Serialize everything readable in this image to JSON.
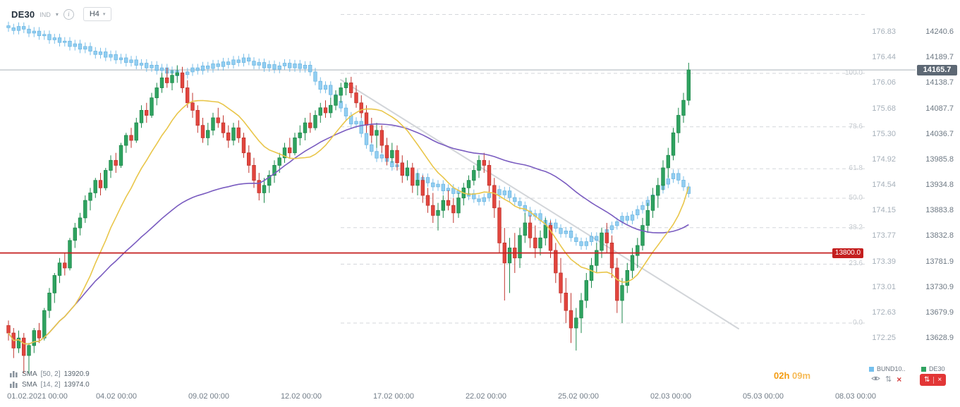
{
  "header": {
    "symbol": "DE30",
    "instrument_type": "IND",
    "timeframe": "H4"
  },
  "current_price": "14165.7",
  "level_line": "13800.0",
  "axis": {
    "bund_prices": [
      "176.83",
      "176.44",
      "176.06",
      "175.68",
      "175.30",
      "174.92",
      "174.54",
      "174.15",
      "173.77",
      "173.39",
      "173.01",
      "172.63",
      "172.25"
    ],
    "de30_prices": [
      "14240.6",
      "14189.7",
      "14138.7",
      "14087.7",
      "14036.7",
      "13985.8",
      "13934.8",
      "13883.8",
      "13832.8",
      "13781.9",
      "13730.9",
      "13679.9",
      "13628.9"
    ],
    "times": [
      "01.02.2021 00:00",
      "04.02 00:00",
      "09.02 00:00",
      "12.02 00:00",
      "17.02 00:00",
      "22.02 00:00",
      "25.02 00:00",
      "02.03 00:00",
      "05.03 00:00",
      "08.03 00:00"
    ]
  },
  "fib_levels": [
    {
      "pct": 123.6,
      "label": ""
    },
    {
      "pct": 100.0,
      "label": "100.0"
    },
    {
      "pct": 78.6,
      "label": "78.6"
    },
    {
      "pct": 61.8,
      "label": "61.8"
    },
    {
      "pct": 50.0,
      "label": "50.0"
    },
    {
      "pct": 38.2,
      "label": "38.2"
    },
    {
      "pct": 23.6,
      "label": "23.6"
    },
    {
      "pct": 0.0,
      "label": "0.0"
    }
  ],
  "indicators": [
    {
      "name": "SMA",
      "params": "[50, 2]",
      "value": "13920.9",
      "color": "#7a5cc0",
      "period": 50
    },
    {
      "name": "SMA",
      "params": "[14, 2]",
      "value": "13974.0",
      "color": "#e9c64a",
      "period": 14
    }
  ],
  "footer": {
    "countdown_h": "02h",
    "countdown_m": "09m",
    "legend": [
      {
        "label": "BUND10..",
        "color": "#74c0ee"
      },
      {
        "label": "DE30",
        "color": "#2fa360"
      }
    ]
  },
  "chart_data": {
    "type": "candlestick",
    "timeframe": "H4",
    "series": [
      {
        "name": "DE30",
        "up_color": "#2fa360",
        "down_color": "#e2453e",
        "ohlc": [
          [
            13655,
            13665,
            13625,
            13640
          ],
          [
            13640,
            13650,
            13590,
            13610
          ],
          [
            13610,
            13645,
            13600,
            13630
          ],
          [
            13630,
            13640,
            13560,
            13595
          ],
          [
            13595,
            13620,
            13558,
            13615
          ],
          [
            13615,
            13650,
            13600,
            13645
          ],
          [
            13645,
            13660,
            13620,
            13630
          ],
          [
            13630,
            13690,
            13625,
            13685
          ],
          [
            13685,
            13730,
            13670,
            13720
          ],
          [
            13720,
            13760,
            13700,
            13755
          ],
          [
            13755,
            13790,
            13740,
            13780
          ],
          [
            13780,
            13800,
            13755,
            13770
          ],
          [
            13770,
            13830,
            13765,
            13825
          ],
          [
            13825,
            13860,
            13810,
            13850
          ],
          [
            13850,
            13880,
            13835,
            13870
          ],
          [
            13870,
            13915,
            13860,
            13905
          ],
          [
            13905,
            13930,
            13885,
            13920
          ],
          [
            13920,
            13950,
            13910,
            13945
          ],
          [
            13945,
            13960,
            13915,
            13930
          ],
          [
            13930,
            13970,
            13925,
            13965
          ],
          [
            13965,
            13995,
            13950,
            13985
          ],
          [
            13985,
            14000,
            13960,
            13975
          ],
          [
            13975,
            14020,
            13970,
            14015
          ],
          [
            14015,
            14040,
            14000,
            14035
          ],
          [
            14035,
            14050,
            14010,
            14025
          ],
          [
            14025,
            14070,
            14020,
            14060
          ],
          [
            14060,
            14095,
            14050,
            14085
          ],
          [
            14085,
            14100,
            14060,
            14075
          ],
          [
            14075,
            14120,
            14070,
            14110
          ],
          [
            14110,
            14140,
            14095,
            14130
          ],
          [
            14130,
            14160,
            14120,
            14150
          ],
          [
            14150,
            14170,
            14130,
            14140
          ],
          [
            14140,
            14165,
            14125,
            14155
          ],
          [
            14155,
            14175,
            14140,
            14160
          ],
          [
            14160,
            14172,
            14120,
            14130
          ],
          [
            14130,
            14145,
            14090,
            14100
          ],
          [
            14100,
            14120,
            14070,
            14085
          ],
          [
            14085,
            14095,
            14040,
            14055
          ],
          [
            14055,
            14070,
            14020,
            14030
          ],
          [
            14030,
            14060,
            14015,
            14045
          ],
          [
            14045,
            14080,
            14035,
            14070
          ],
          [
            14070,
            14090,
            14050,
            14060
          ],
          [
            14060,
            14075,
            14030,
            14040
          ],
          [
            14040,
            14055,
            14010,
            14025
          ],
          [
            14025,
            14060,
            14015,
            14050
          ],
          [
            14050,
            14065,
            14020,
            14030
          ],
          [
            14030,
            14040,
            13990,
            14000
          ],
          [
            14000,
            14015,
            13960,
            13975
          ],
          [
            13975,
            13990,
            13930,
            13945
          ],
          [
            13945,
            13960,
            13905,
            13920
          ],
          [
            13920,
            13950,
            13900,
            13935
          ],
          [
            13935,
            13965,
            13920,
            13955
          ],
          [
            13955,
            13985,
            13940,
            13975
          ],
          [
            13975,
            14000,
            13960,
            13990
          ],
          [
            13990,
            14020,
            13980,
            14010
          ],
          [
            14010,
            14030,
            13990,
            14000
          ],
          [
            14000,
            14040,
            13995,
            14030
          ],
          [
            14030,
            14055,
            14015,
            14040
          ],
          [
            14040,
            14070,
            14025,
            14060
          ],
          [
            14060,
            14080,
            14040,
            14050
          ],
          [
            14050,
            14085,
            14045,
            14075
          ],
          [
            14075,
            14100,
            14060,
            14090
          ],
          [
            14090,
            14105,
            14070,
            14080
          ],
          [
            14080,
            14110,
            14070,
            14095
          ],
          [
            14095,
            14125,
            14085,
            14115
          ],
          [
            14115,
            14140,
            14100,
            14130
          ],
          [
            14130,
            14150,
            14115,
            14140
          ],
          [
            14140,
            14152,
            14110,
            14120
          ],
          [
            14120,
            14135,
            14090,
            14100
          ],
          [
            14100,
            14115,
            14070,
            14080
          ],
          [
            14080,
            14095,
            14040,
            14055
          ],
          [
            14055,
            14070,
            14020,
            14035
          ],
          [
            14035,
            14060,
            14010,
            14045
          ],
          [
            14045,
            14055,
            14000,
            14015
          ],
          [
            14015,
            14030,
            13975,
            13990
          ],
          [
            13990,
            14020,
            13980,
            14005
          ],
          [
            14005,
            14015,
            13965,
            13980
          ],
          [
            13980,
            13995,
            13940,
            13955
          ],
          [
            13955,
            13985,
            13945,
            13970
          ],
          [
            13970,
            13980,
            13920,
            13935
          ],
          [
            13935,
            13960,
            13915,
            13945
          ],
          [
            13945,
            13955,
            13900,
            13915
          ],
          [
            13915,
            13930,
            13880,
            13895
          ],
          [
            13895,
            13920,
            13860,
            13875
          ],
          [
            13875,
            13900,
            13845,
            13885
          ],
          [
            13885,
            13915,
            13870,
            13905
          ],
          [
            13905,
            13925,
            13885,
            13895
          ],
          [
            13895,
            13910,
            13860,
            13880
          ],
          [
            13880,
            13920,
            13870,
            13910
          ],
          [
            13910,
            13940,
            13895,
            13930
          ],
          [
            13930,
            13955,
            13915,
            13945
          ],
          [
            13945,
            13975,
            13935,
            13965
          ],
          [
            13965,
            13995,
            13950,
            13985
          ],
          [
            13985,
            14000,
            13960,
            13975
          ],
          [
            13975,
            13985,
            13920,
            13935
          ],
          [
            13935,
            13950,
            13870,
            13890
          ],
          [
            13890,
            13905,
            13800,
            13820
          ],
          [
            13820,
            13850,
            13705,
            13780
          ],
          [
            13780,
            13830,
            13720,
            13810
          ],
          [
            13810,
            13840,
            13760,
            13790
          ],
          [
            13790,
            13850,
            13770,
            13835
          ],
          [
            13835,
            13880,
            13820,
            13860
          ],
          [
            13860,
            13875,
            13810,
            13830
          ],
          [
            13830,
            13855,
            13790,
            13810
          ],
          [
            13810,
            13845,
            13795,
            13830
          ],
          [
            13830,
            13870,
            13815,
            13855
          ],
          [
            13855,
            13865,
            13790,
            13805
          ],
          [
            13805,
            13820,
            13740,
            13760
          ],
          [
            13760,
            13790,
            13700,
            13720
          ],
          [
            13720,
            13750,
            13660,
            13685
          ],
          [
            13685,
            13720,
            13620,
            13650
          ],
          [
            13650,
            13690,
            13605,
            13670
          ],
          [
            13670,
            13720,
            13640,
            13705
          ],
          [
            13705,
            13760,
            13690,
            13745
          ],
          [
            13745,
            13790,
            13730,
            13775
          ],
          [
            13775,
            13820,
            13760,
            13805
          ],
          [
            13805,
            13850,
            13790,
            13840
          ],
          [
            13840,
            13860,
            13800,
            13820
          ],
          [
            13820,
            13835,
            13750,
            13770
          ],
          [
            13770,
            13790,
            13680,
            13705
          ],
          [
            13705,
            13750,
            13660,
            13735
          ],
          [
            13735,
            13780,
            13720,
            13765
          ],
          [
            13765,
            13810,
            13750,
            13795
          ],
          [
            13795,
            13830,
            13770,
            13815
          ],
          [
            13815,
            13870,
            13805,
            13855
          ],
          [
            13855,
            13900,
            13840,
            13885
          ],
          [
            13885,
            13930,
            13870,
            13915
          ],
          [
            13915,
            13950,
            13890,
            13935
          ],
          [
            13935,
            13985,
            13925,
            13970
          ],
          [
            13970,
            14010,
            13950,
            13995
          ],
          [
            13995,
            14050,
            13985,
            14040
          ],
          [
            14040,
            14090,
            14020,
            14075
          ],
          [
            14075,
            14120,
            14060,
            14105
          ],
          [
            14105,
            14180,
            14095,
            14165.7
          ]
        ]
      },
      {
        "name": "BUND10Y",
        "color": "#7fc6f0",
        "closes": [
          176.9,
          176.86,
          176.92,
          176.88,
          176.82,
          176.85,
          176.78,
          176.8,
          176.72,
          176.75,
          176.68,
          176.7,
          176.62,
          176.66,
          176.58,
          176.62,
          176.55,
          176.5,
          176.54,
          176.46,
          176.5,
          176.42,
          176.45,
          176.38,
          176.42,
          176.34,
          176.37,
          176.3,
          176.34,
          176.26,
          176.3,
          176.22,
          176.26,
          176.18,
          176.2,
          176.24,
          176.3,
          176.26,
          176.33,
          176.29,
          176.36,
          176.32,
          176.39,
          176.35,
          176.42,
          176.38,
          176.45,
          176.4,
          176.34,
          176.38,
          176.3,
          176.35,
          176.28,
          176.33,
          176.37,
          176.3,
          176.36,
          176.29,
          176.34,
          176.24,
          176.1,
          175.98,
          176.04,
          175.9,
          175.8,
          175.7,
          175.58,
          175.46,
          175.5,
          175.32,
          175.15,
          175.05,
          174.95,
          175.0,
          174.9,
          174.82,
          174.85,
          174.75,
          174.68,
          174.72,
          174.62,
          174.66,
          174.58,
          174.52,
          174.56,
          174.46,
          174.5,
          174.42,
          174.46,
          174.38,
          174.42,
          174.34,
          174.3,
          174.36,
          174.42,
          174.48,
          174.4,
          174.46,
          174.36,
          174.3,
          174.24,
          174.16,
          174.08,
          174.12,
          174.02,
          173.94,
          173.98,
          173.9,
          173.82,
          173.86,
          173.76,
          173.7,
          173.64,
          173.7,
          173.78,
          173.72,
          173.82,
          173.88,
          173.94,
          174.0,
          174.08,
          174.02,
          174.1,
          174.18,
          174.24,
          174.32,
          174.4,
          174.48,
          174.56,
          174.64,
          174.72,
          174.62,
          174.52,
          174.42
        ]
      }
    ]
  }
}
